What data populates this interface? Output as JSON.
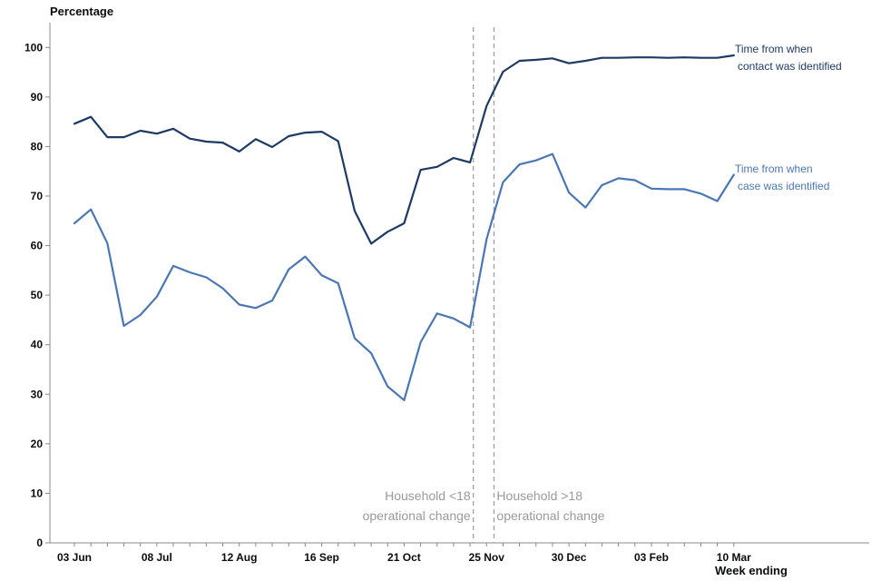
{
  "chart_data": {
    "type": "line",
    "ylabel": "Percentage",
    "xlabel": "Week ending",
    "ylim": [
      0,
      105
    ],
    "yticks": [
      0,
      10,
      20,
      30,
      40,
      50,
      60,
      70,
      80,
      90,
      100
    ],
    "x_tick_labels": [
      {
        "index": 0,
        "label": "03 Jun"
      },
      {
        "index": 5,
        "label": "08 Jul"
      },
      {
        "index": 10,
        "label": "12 Aug"
      },
      {
        "index": 15,
        "label": "16 Sep"
      },
      {
        "index": 20,
        "label": "21 Oct"
      },
      {
        "index": 25,
        "label": "25 Nov"
      },
      {
        "index": 30,
        "label": "30 Dec"
      },
      {
        "index": 35,
        "label": "03 Feb"
      },
      {
        "index": 40,
        "label": "10 Mar"
      }
    ],
    "series": [
      {
        "name": "Time from when contact was identified",
        "label_lines": [
          "Time from when",
          "contact was identified"
        ],
        "color": "#1d3a64",
        "values": [
          84.6,
          86,
          81.9,
          81.9,
          83.2,
          82.6,
          83.6,
          81.6,
          81,
          80.8,
          79,
          81.5,
          79.9,
          82.1,
          82.8,
          83,
          81.1,
          67,
          60.4,
          62.8,
          64.5,
          75.3,
          75.9,
          77.7,
          76.8,
          88.2,
          95.1,
          97.3,
          97.5,
          97.8,
          96.8,
          97.3,
          97.9,
          97.9,
          98,
          98,
          97.9,
          98,
          97.9,
          97.9,
          98.4
        ]
      },
      {
        "name": "Time from when case was identified",
        "label_lines": [
          "Time from when",
          "case was identified"
        ],
        "color": "#4a77b4",
        "values": [
          64.5,
          67.3,
          60.5,
          43.8,
          46,
          49.7,
          55.9,
          54.6,
          53.6,
          51.4,
          48.1,
          47.4,
          48.9,
          55.2,
          57.8,
          54,
          52.4,
          41.3,
          38.3,
          31.6,
          28.8,
          40.5,
          46.3,
          45.3,
          43.5,
          61.3,
          72.8,
          76.4,
          77.2,
          78.5,
          70.7,
          67.7,
          72.2,
          73.6,
          73.2,
          71.5,
          71.4,
          71.4,
          70.5,
          69,
          74.3
        ]
      }
    ],
    "annotations": [
      {
        "after_index": 24,
        "lines": [
          "Household <18",
          "operational change"
        ],
        "align": "left-of-line"
      },
      {
        "after_index": 25.5,
        "lines": [
          "Household >18",
          "operational change"
        ],
        "align": "right-of-line"
      }
    ],
    "grid": false,
    "colors": {
      "axis": "#888888",
      "annotation_line": "#9a9a9a",
      "annotation_text": "#9a9a9a"
    }
  }
}
